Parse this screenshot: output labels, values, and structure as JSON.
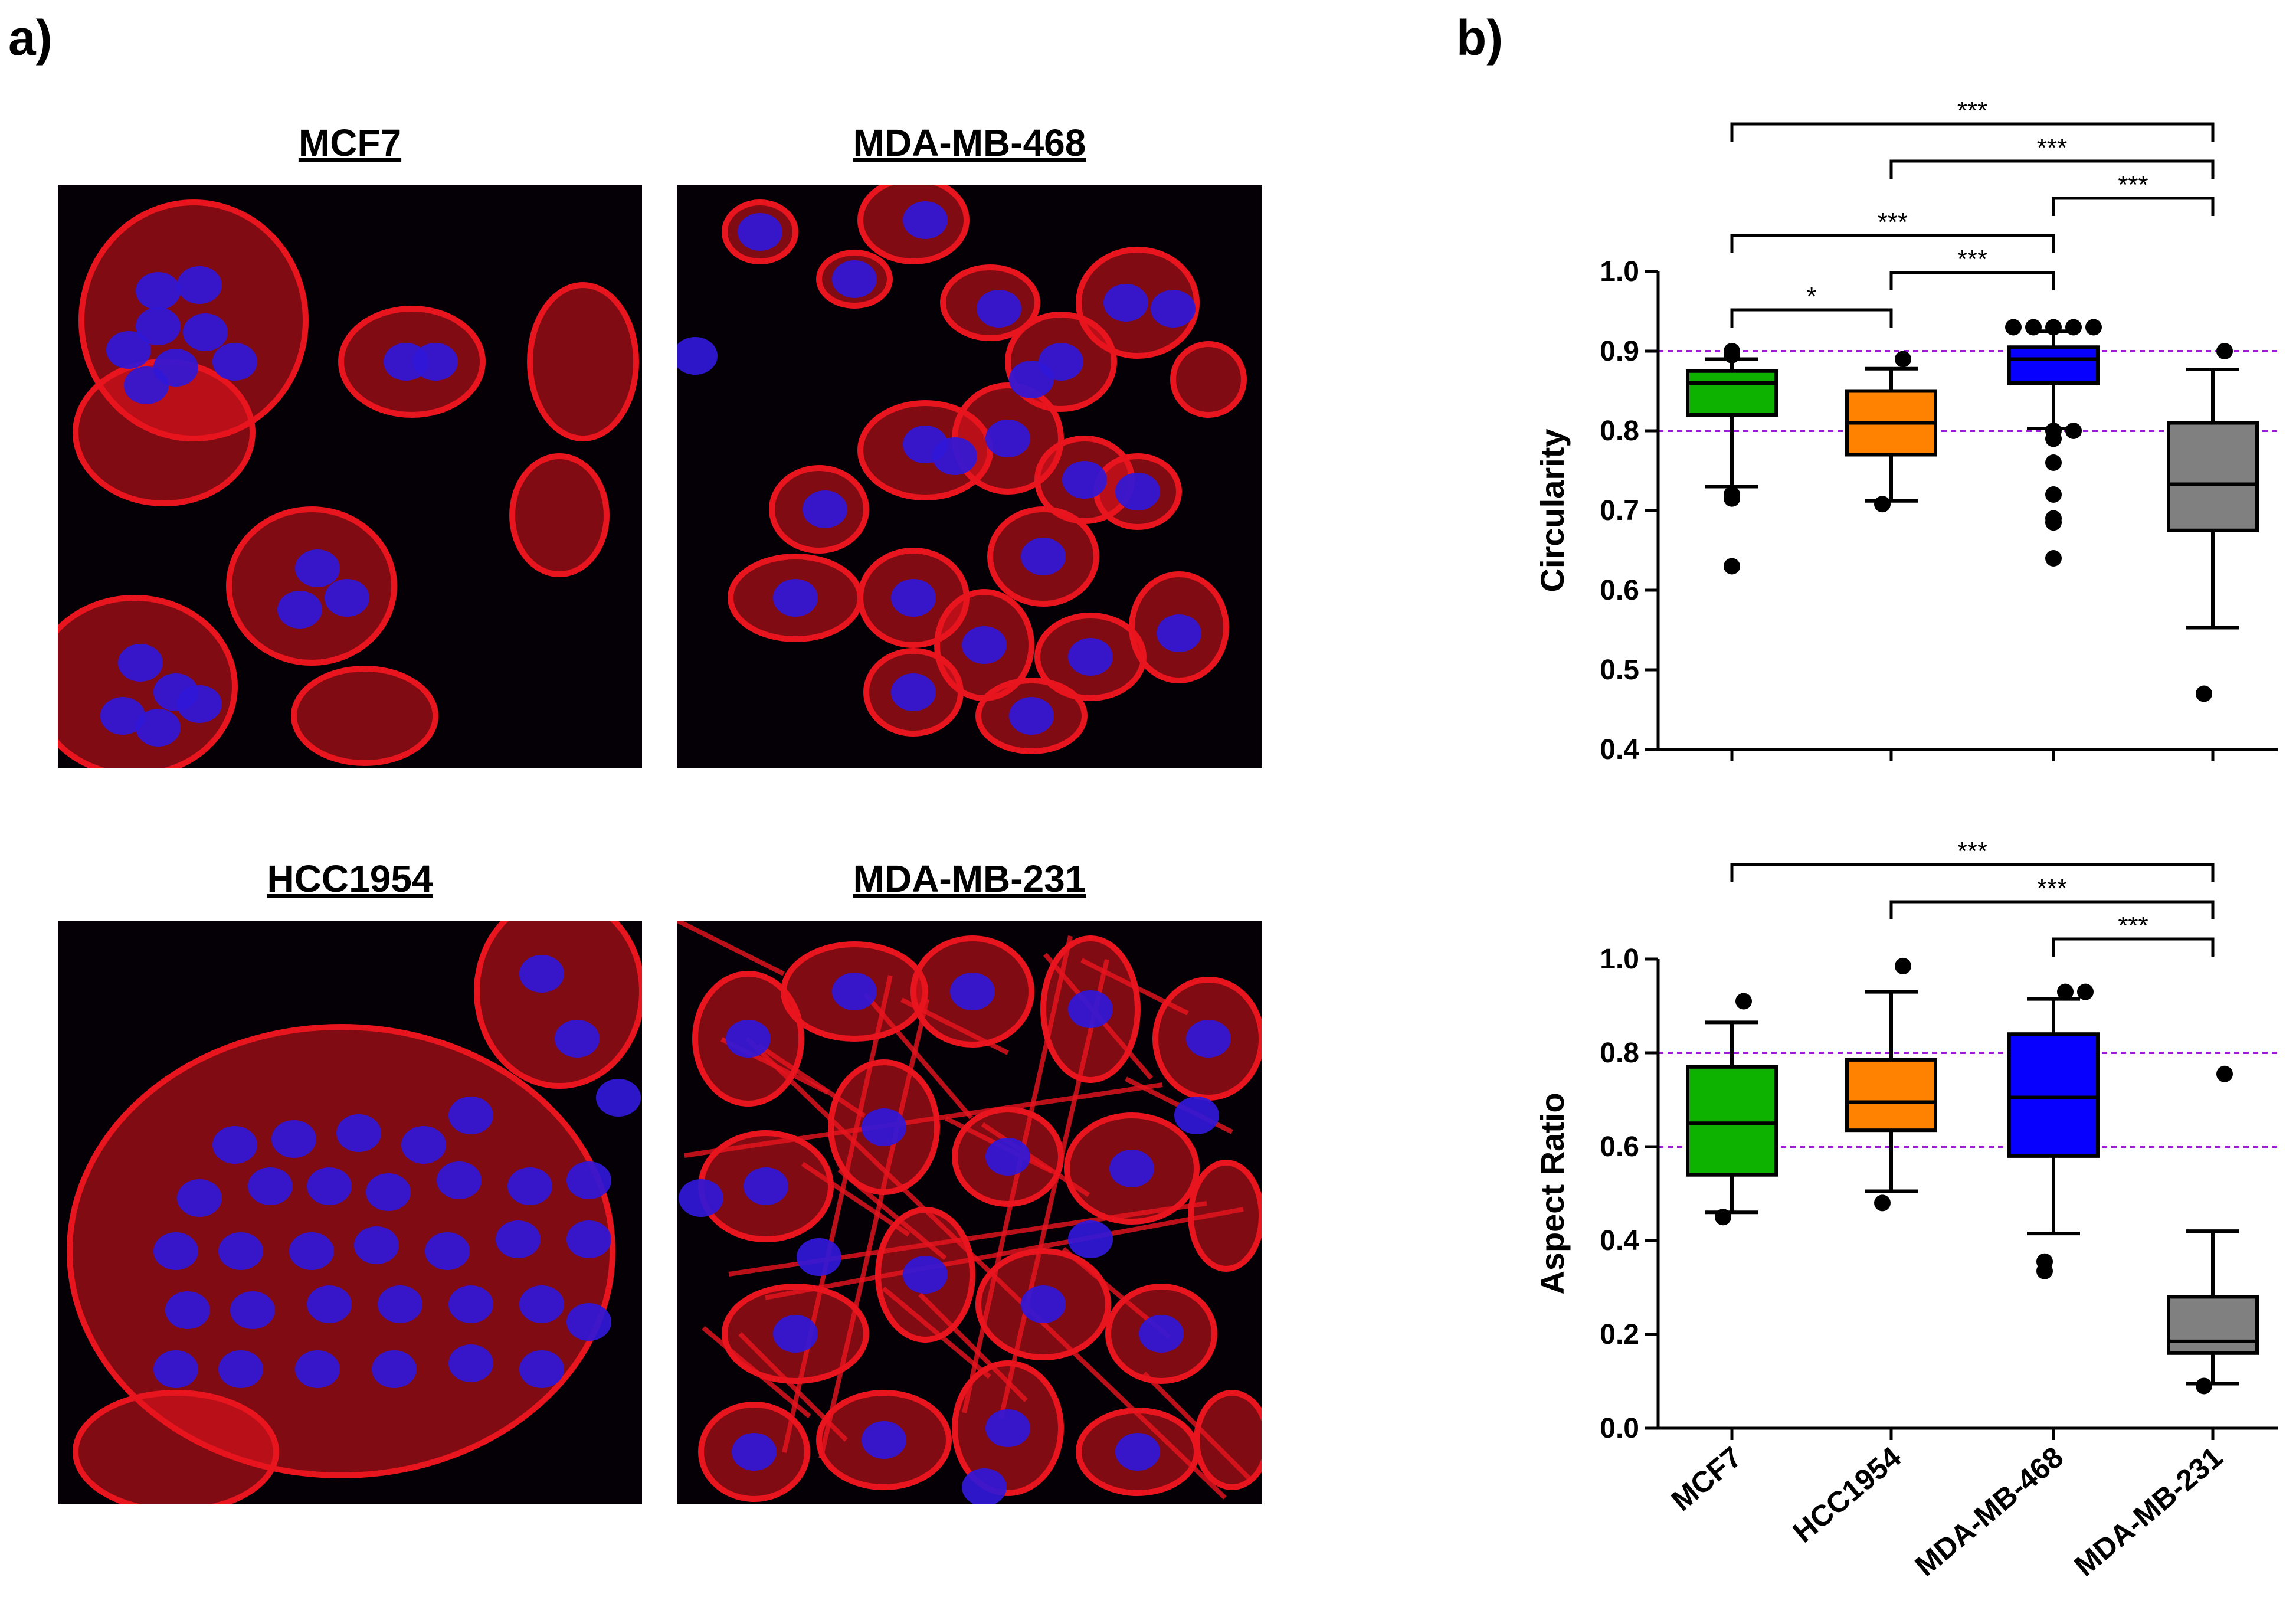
{
  "labels": {
    "panel_a": "a)",
    "panel_b": "b)"
  },
  "images": [
    {
      "title": "MCF7",
      "pattern": "dense-clusters"
    },
    {
      "title": "MDA-MB-468",
      "pattern": "scattered-rounded"
    },
    {
      "title": "HCC1954",
      "pattern": "confluent-sheet"
    },
    {
      "title": "MDA-MB-231",
      "pattern": "elongated-spindle"
    }
  ],
  "colors": {
    "actin": "#e8141e",
    "nucleus": "#3018d8",
    "background": "#050005",
    "green": "#0db200",
    "orange": "#ff8200",
    "blue": "#0800ff",
    "gray": "#808080",
    "reference_line": "#9a1ed6"
  },
  "chart_data": [
    {
      "type": "box",
      "ylabel": "Circularity",
      "xlabel": "",
      "categories": [
        "MCF7",
        "HCC1954",
        "MDA-MB-468",
        "MDA-MB-231"
      ],
      "ylim": [
        0.4,
        1.0
      ],
      "yticks": [
        "0.4",
        "0.5",
        "0.6",
        "0.7",
        "0.8",
        "0.9",
        "1.0"
      ],
      "reference_lines": [
        0.8,
        0.9
      ],
      "boxes": [
        {
          "name": "MCF7",
          "whisker_low": 0.73,
          "q1": 0.82,
          "median": 0.86,
          "q3": 0.875,
          "whisker_high": 0.89,
          "outliers": [
            0.72,
            0.715,
            0.63,
            0.895,
            0.9
          ]
        },
        {
          "name": "HCC1954",
          "whisker_low": 0.712,
          "q1": 0.77,
          "median": 0.81,
          "q3": 0.85,
          "whisker_high": 0.878,
          "outliers": [
            0.708,
            0.89
          ]
        },
        {
          "name": "MDA-MB-468",
          "whisker_low": 0.803,
          "q1": 0.86,
          "median": 0.89,
          "q3": 0.905,
          "whisker_high": 0.925,
          "outliers": [
            0.93,
            0.93,
            0.93,
            0.93,
            0.93,
            0.8,
            0.8,
            0.79,
            0.76,
            0.72,
            0.69,
            0.685,
            0.64
          ]
        },
        {
          "name": "MDA-MB-231",
          "whisker_low": 0.553,
          "q1": 0.675,
          "median": 0.733,
          "q3": 0.81,
          "whisker_high": 0.877,
          "outliers": [
            0.9,
            0.47
          ]
        }
      ],
      "significance": [
        {
          "from": 0,
          "to": 3,
          "label": "***"
        },
        {
          "from": 1,
          "to": 3,
          "label": "***"
        },
        {
          "from": 2,
          "to": 3,
          "label": "***"
        },
        {
          "from": 0,
          "to": 2,
          "label": "***"
        },
        {
          "from": 1,
          "to": 2,
          "label": "***"
        },
        {
          "from": 0,
          "to": 1,
          "label": "*"
        }
      ]
    },
    {
      "type": "box",
      "ylabel": "Aspect Ratio",
      "xlabel": "",
      "categories": [
        "MCF7",
        "HCC1954",
        "MDA-MB-468",
        "MDA-MB-231"
      ],
      "ylim": [
        0.0,
        1.0
      ],
      "yticks": [
        "0.0",
        "0.2",
        "0.4",
        "0.6",
        "0.8",
        "1.0"
      ],
      "reference_lines": [
        0.6,
        0.8
      ],
      "boxes": [
        {
          "name": "MCF7",
          "whisker_low": 0.46,
          "q1": 0.54,
          "median": 0.65,
          "q3": 0.77,
          "whisker_high": 0.865,
          "outliers": [
            0.91,
            0.45
          ]
        },
        {
          "name": "HCC1954",
          "whisker_low": 0.505,
          "q1": 0.635,
          "median": 0.695,
          "q3": 0.785,
          "whisker_high": 0.93,
          "outliers": [
            0.985,
            0.48
          ]
        },
        {
          "name": "MDA-MB-468",
          "whisker_low": 0.415,
          "q1": 0.58,
          "median": 0.705,
          "q3": 0.84,
          "whisker_high": 0.915,
          "outliers": [
            0.93,
            0.93,
            0.335,
            0.355
          ]
        },
        {
          "name": "MDA-MB-231",
          "whisker_low": 0.095,
          "q1": 0.16,
          "median": 0.185,
          "q3": 0.28,
          "whisker_high": 0.42,
          "outliers": [
            0.755,
            0.09
          ]
        }
      ],
      "significance": [
        {
          "from": 0,
          "to": 3,
          "label": "***"
        },
        {
          "from": 1,
          "to": 3,
          "label": "***"
        },
        {
          "from": 2,
          "to": 3,
          "label": "***"
        }
      ]
    }
  ]
}
